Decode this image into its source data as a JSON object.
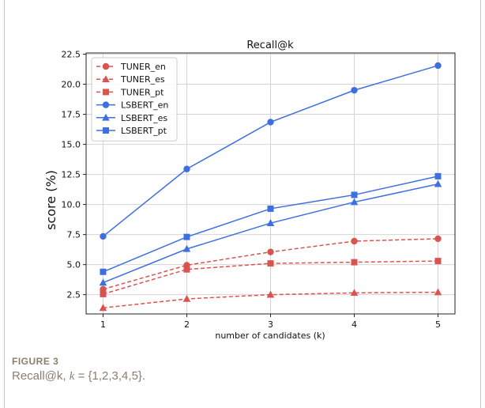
{
  "figure": {
    "label": "FIGURE 3",
    "caption_prefix": "Recall@k, ",
    "caption_var": "k",
    "caption_suffix": " = {1,2,3,4,5}."
  },
  "chart_data": {
    "type": "line",
    "title": "Recall@k",
    "xlabel": "number of candidates (k)",
    "ylabel": "score (%)",
    "x": [
      1,
      2,
      3,
      4,
      5
    ],
    "x_ticks": [
      "1",
      "2",
      "3",
      "4",
      "5"
    ],
    "ylim": [
      0.9,
      22.6
    ],
    "y_ticks": [
      "2.5",
      "5.0",
      "7.5",
      "10.0",
      "12.5",
      "15.0",
      "17.5",
      "20.0",
      "22.5"
    ],
    "grid": true,
    "legend_position": "top-left",
    "series": [
      {
        "name": "TUNER_en",
        "values": [
          2.95,
          4.95,
          6.05,
          6.95,
          7.15
        ],
        "color": "#d9534f",
        "marker": "circle",
        "linestyle": "dashed"
      },
      {
        "name": "TUNER_es",
        "values": [
          1.4,
          2.15,
          2.5,
          2.65,
          2.7
        ],
        "color": "#d9534f",
        "marker": "triangle",
        "linestyle": "dashed"
      },
      {
        "name": "TUNER_pt",
        "values": [
          2.55,
          4.6,
          5.1,
          5.2,
          5.3
        ],
        "color": "#d9534f",
        "marker": "square",
        "linestyle": "dashed"
      },
      {
        "name": "LSBERT_en",
        "values": [
          7.35,
          12.95,
          16.85,
          19.5,
          21.55
        ],
        "color": "#3d6fe0",
        "marker": "circle",
        "linestyle": "solid"
      },
      {
        "name": "LSBERT_es",
        "values": [
          3.5,
          6.3,
          8.45,
          10.2,
          11.7
        ],
        "color": "#3d6fe0",
        "marker": "triangle",
        "linestyle": "solid"
      },
      {
        "name": "LSBERT_pt",
        "values": [
          4.4,
          7.3,
          9.65,
          10.8,
          12.35
        ],
        "color": "#3d6fe0",
        "marker": "square",
        "linestyle": "solid"
      }
    ]
  }
}
